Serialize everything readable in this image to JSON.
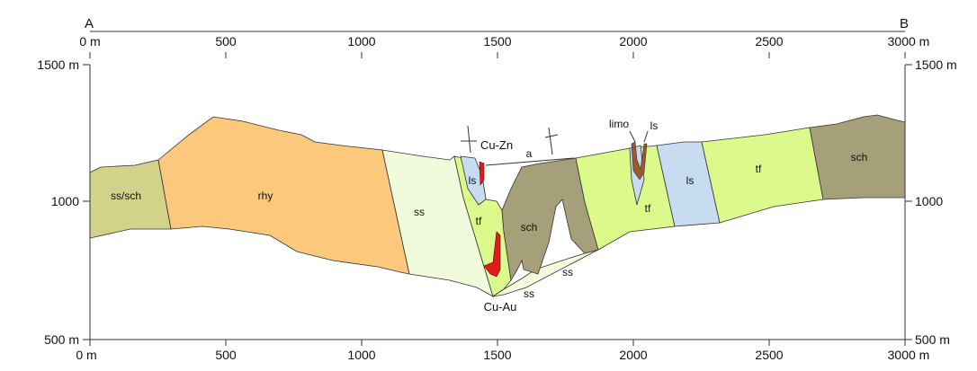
{
  "section": {
    "end_left": "A",
    "end_right": "B",
    "x_ticks": [
      "0 m",
      "500",
      "1000",
      "1500",
      "2000",
      "2500",
      "3000 m"
    ],
    "y_labels_left": [
      "1500 m",
      "1000",
      "500 m"
    ],
    "y_labels_right": [
      "1500 m",
      "1000",
      "500 m"
    ]
  },
  "units": {
    "ss_sch": "ss/sch",
    "rhy": "rhy",
    "ss": "ss",
    "ls": "ls",
    "tf": "tf",
    "sch": "sch",
    "a": "a",
    "limo": "limo"
  },
  "ore": {
    "cu_zn": "Cu-Zn",
    "cu_au": "Cu-Au"
  },
  "colors": {
    "ss_sch": "#d2d28a",
    "rhy": "#fbc87c",
    "ss": "#f2fadc",
    "ls": "#c7dcf0",
    "tf": "#dcf98c",
    "sch": "#a6a07a",
    "ore": "#e01b1b",
    "limo": "#9a5a2c"
  }
}
